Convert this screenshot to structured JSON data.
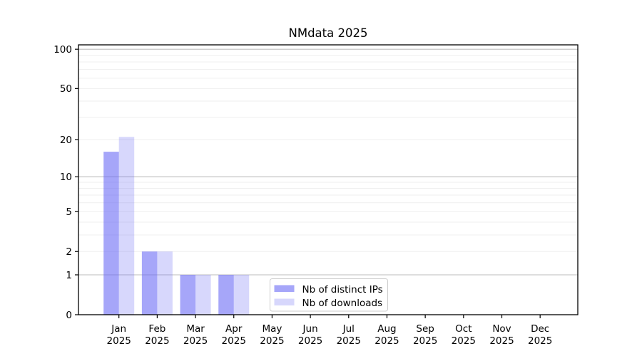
{
  "page": {
    "background": "#ffffff"
  },
  "chart_data": {
    "type": "bar",
    "title": "NMdata 2025",
    "categories": [
      "Jan",
      "Feb",
      "Mar",
      "Apr",
      "May",
      "Jun",
      "Jul",
      "Aug",
      "Sep",
      "Oct",
      "Nov",
      "Dec"
    ],
    "x_year_line": "2025",
    "series": [
      {
        "name": "Nb of distinct IPs",
        "fill_rgb": "101,101,245",
        "fill_opacity": 0.58,
        "legend_color": "#a8a8f8",
        "values": [
          16,
          2,
          1,
          1,
          0,
          0,
          0,
          0,
          0,
          0,
          0,
          0
        ]
      },
      {
        "name": "Nb of downloads",
        "fill_rgb": "101,101,245",
        "fill_opacity": 0.26,
        "legend_color": "#d8d8f8",
        "values": [
          21,
          2,
          1,
          1,
          0,
          0,
          0,
          0,
          0,
          0,
          0,
          0
        ]
      }
    ],
    "yscale": "log1p",
    "ylim": [
      0,
      108
    ],
    "yticks": [
      0,
      1,
      2,
      5,
      10,
      20,
      50,
      100
    ],
    "major_grid_values": [
      1,
      10,
      100
    ],
    "minor_grid_values": [
      2,
      3,
      4,
      5,
      6,
      7,
      8,
      9,
      20,
      30,
      40,
      50,
      60,
      70,
      80,
      90
    ],
    "grid": true,
    "legend_position": "inside-bottom-center"
  },
  "colors": {
    "axis": "#000000",
    "text": "#000000",
    "major_grid": "#bdbdbd",
    "minor_grid": "#efefef",
    "legend_border": "#cccccc",
    "legend_background": "#ffffff",
    "background": "#ffffff"
  }
}
